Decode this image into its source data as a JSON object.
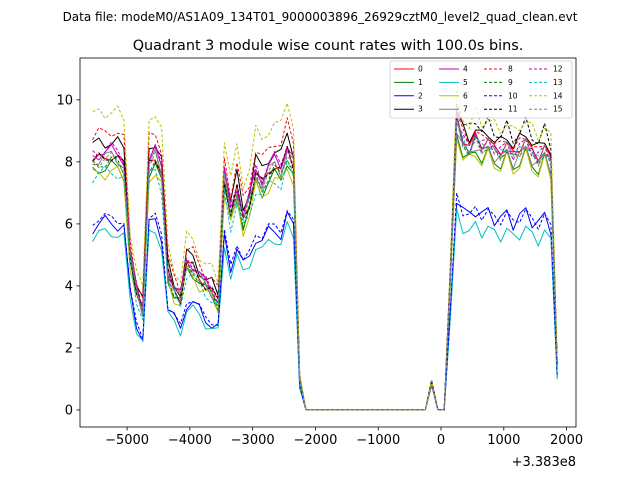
{
  "suptitle": "Data file: modeM0/AS1A09_134T01_9000003896_26929cztM0_level2_quad_clean.evt",
  "chart_data": {
    "type": "line",
    "title": "Quadrant 3 module wise count rates with 100.0s bins.",
    "xlabel": "",
    "ylabel": "",
    "offset_label": "+3.383e8",
    "xlim": [
      -5750,
      2150
    ],
    "ylim": [
      -0.55,
      11.35
    ],
    "xticks": [
      -5000,
      -4000,
      -3000,
      -2000,
      -1000,
      0,
      1000,
      2000
    ],
    "xtick_labels": [
      "−5000",
      "−4000",
      "−3000",
      "−2000",
      "−1000",
      "0",
      "1000",
      "2000"
    ],
    "yticks": [
      0,
      2,
      4,
      6,
      8,
      10
    ],
    "ytick_labels": [
      "0",
      "2",
      "4",
      "6",
      "8",
      "10"
    ],
    "grid": false,
    "legend_position": "top-right",
    "legend_columns": 4,
    "gap_x": [
      -2150,
      -250,
      -150,
      -50,
      50
    ],
    "gap_y": [
      0,
      0,
      0.95,
      0,
      0
    ],
    "x_before": [
      -5550,
      -5450,
      -5350,
      -5250,
      -5150,
      -5050,
      -4950,
      -4850,
      -4750,
      -4650,
      -4550,
      -4450,
      -4350,
      -4250,
      -4150,
      -4050,
      -3950,
      -3850,
      -3750,
      -3650,
      -3550,
      -3450,
      -3350,
      -3250,
      -3150,
      -3050,
      -2950,
      -2850,
      -2750,
      -2650,
      -2550,
      -2450,
      -2350,
      -2250
    ],
    "x_after": [
      150,
      250,
      350,
      450,
      550,
      650,
      750,
      850,
      950,
      1050,
      1150,
      1250,
      1350,
      1450,
      1550,
      1650,
      1750,
      1850
    ],
    "base_profile": [
      8.0,
      8.1,
      8.15,
      8.2,
      8.1,
      7.9,
      5.0,
      3.8,
      3.2,
      8.0,
      8.2,
      7.6,
      4.4,
      3.9,
      3.6,
      4.7,
      4.6,
      4.3,
      4.0,
      3.8,
      3.5,
      7.5,
      6.3,
      7.1,
      6.2,
      6.7,
      7.6,
      7.3,
      7.7,
      7.9,
      7.7,
      8.4,
      7.9,
      1.0
    ],
    "after_profile": [
      4.5,
      9.6,
      8.9,
      8.7,
      9.0,
      8.7,
      8.9,
      8.6,
      8.5,
      8.8,
      8.4,
      8.6,
      8.9,
      8.5,
      8.3,
      8.7,
      8.2,
      1.5
    ],
    "series": [
      {
        "name": "0",
        "color": "#ff0000",
        "dashed": false,
        "base_scale": 1.0,
        "after_scale": 0.98,
        "wiggle": 0.15
      },
      {
        "name": "1",
        "color": "#008000",
        "dashed": false,
        "base_scale": 0.96,
        "after_scale": 0.93,
        "wiggle": 0.2
      },
      {
        "name": "2",
        "color": "#0000ff",
        "dashed": false,
        "base_scale": 0.74,
        "after_scale": 0.72,
        "wiggle": 0.25
      },
      {
        "name": "3",
        "color": "#000000",
        "dashed": false,
        "base_scale": 1.06,
        "after_scale": 1.01,
        "wiggle": 0.25
      },
      {
        "name": "4",
        "color": "#bf00bf",
        "dashed": false,
        "base_scale": 1.02,
        "after_scale": 0.97,
        "wiggle": 0.2
      },
      {
        "name": "5",
        "color": "#00bfbf",
        "dashed": false,
        "base_scale": 0.7,
        "after_scale": 0.66,
        "wiggle": 0.2
      },
      {
        "name": "6",
        "color": "#bfbf00",
        "dashed": false,
        "base_scale": 0.94,
        "after_scale": 0.92,
        "wiggle": 0.25
      },
      {
        "name": "7",
        "color": "#808080",
        "dashed": false,
        "base_scale": 1.0,
        "after_scale": 0.95,
        "wiggle": 0.2
      },
      {
        "name": "8",
        "color": "#ff0000",
        "dashed": true,
        "base_scale": 1.1,
        "after_scale": 1.0,
        "wiggle": 0.2
      },
      {
        "name": "9",
        "color": "#008000",
        "dashed": true,
        "base_scale": 0.98,
        "after_scale": 0.96,
        "wiggle": 0.2
      },
      {
        "name": "10",
        "color": "#0000ff",
        "dashed": true,
        "base_scale": 0.76,
        "after_scale": 0.72,
        "wiggle": 0.15
      },
      {
        "name": "11",
        "color": "#000000",
        "dashed": true,
        "base_scale": 1.0,
        "after_scale": 1.04,
        "wiggle": 0.2
      },
      {
        "name": "12",
        "color": "#bf00bf",
        "dashed": true,
        "base_scale": 1.03,
        "after_scale": 0.98,
        "wiggle": 0.2
      },
      {
        "name": "13",
        "color": "#00bfbf",
        "dashed": true,
        "base_scale": 0.94,
        "after_scale": 0.97,
        "wiggle": 0.2
      },
      {
        "name": "14",
        "color": "#bfbf00",
        "dashed": true,
        "base_scale": 1.18,
        "after_scale": 1.06,
        "wiggle": 0.25
      },
      {
        "name": "15",
        "color": "#808080",
        "dashed": true,
        "base_scale": 0.99,
        "after_scale": 0.97,
        "wiggle": 0.2
      }
    ]
  }
}
